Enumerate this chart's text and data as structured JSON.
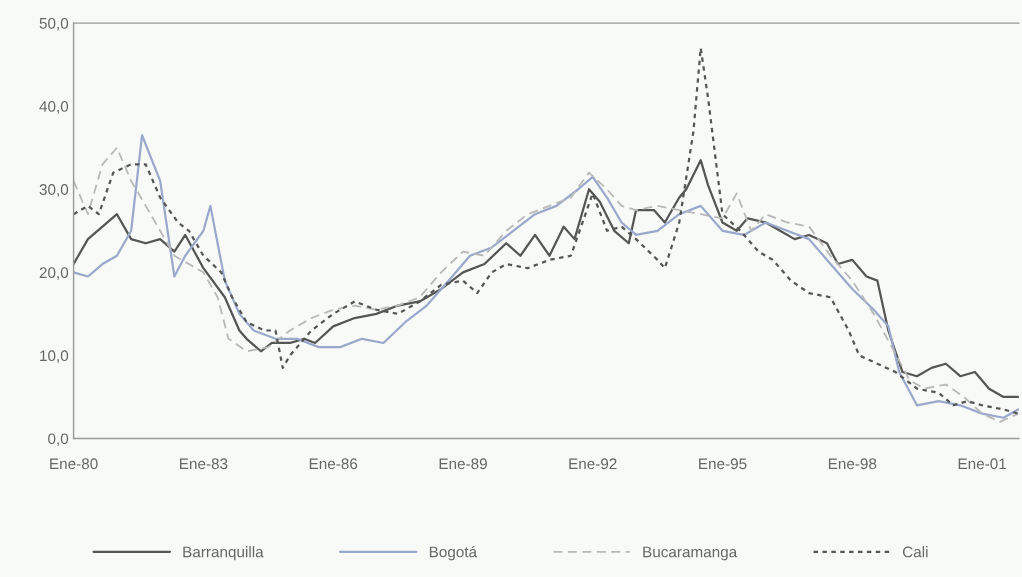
{
  "chart_data": {
    "type": "line",
    "xlim": [
      "1980-01",
      "2001-11-08"
    ],
    "ylim": [
      0,
      50
    ],
    "xticks": [
      {
        "value": "1980-01",
        "label": "Ene-80"
      },
      {
        "value": "1983-01",
        "label": "Ene-83"
      },
      {
        "value": "1986-01",
        "label": "Ene-86"
      },
      {
        "value": "1989-01",
        "label": "Ene-89"
      },
      {
        "value": "1992-01",
        "label": "Ene-92"
      },
      {
        "value": "1995-01",
        "label": "Ene-95"
      },
      {
        "value": "1998-01",
        "label": "Ene-98"
      },
      {
        "value": "2001-01",
        "label": "Ene-01"
      }
    ],
    "yticks": [
      {
        "value": 0,
        "label": "0,0"
      },
      {
        "value": 10,
        "label": "10,0"
      },
      {
        "value": 20,
        "label": "20,0"
      },
      {
        "value": 30,
        "label": "30,0"
      },
      {
        "value": 40,
        "label": "40,0"
      },
      {
        "value": 50,
        "label": "50,0"
      }
    ],
    "grid": false,
    "legend": "bottom",
    "series": [
      {
        "name": "Barranquilla",
        "color": "#555555",
        "line_style": "solid",
        "x": [
          "1980-01",
          "1980-05",
          "1980-09",
          "1981-01",
          "1981-05",
          "1981-09",
          "1982-01",
          "1982-05",
          "1982-08",
          "1983-01",
          "1983-07",
          "1983-11",
          "1984-01",
          "1984-05",
          "1984-08",
          "1985-01",
          "1985-05",
          "1985-08",
          "1986-01",
          "1986-07",
          "1987-01",
          "1987-07",
          "1988-01",
          "1988-07",
          "1989-01",
          "1989-07",
          "1990-01",
          "1990-05",
          "1990-09",
          "1991-01",
          "1991-05",
          "1991-08",
          "1991-12",
          "1992-03",
          "1992-07",
          "1992-11",
          "1993-01",
          "1993-06",
          "1993-09",
          "1994-01",
          "1994-03",
          "1994-07",
          "1994-09",
          "1995-01",
          "1995-05",
          "1995-08",
          "1996-01",
          "1996-05",
          "1996-09",
          "1997-01",
          "1997-06",
          "1997-09",
          "1998-01",
          "1998-05",
          "1998-08",
          "1998-11",
          "1999-03",
          "1999-07",
          "1999-11",
          "2000-03",
          "2000-07",
          "2000-11",
          "2001-03",
          "2001-07",
          "2001-11"
        ],
        "values": [
          21,
          24,
          25.5,
          27,
          24,
          23.5,
          24,
          22.5,
          24.5,
          20.5,
          17,
          13,
          12,
          10.5,
          11.5,
          11.5,
          12,
          11.5,
          13.5,
          14.5,
          15,
          16,
          16.5,
          18,
          20,
          21,
          23.5,
          22,
          24.5,
          22,
          25.5,
          24,
          30,
          28.5,
          25,
          23.5,
          27.5,
          27.5,
          26,
          29,
          30,
          33.5,
          30.5,
          26,
          25,
          26.5,
          26,
          25,
          24,
          24.5,
          23.5,
          21,
          21.5,
          19.5,
          19,
          13,
          8,
          7.5,
          8.5,
          9,
          7.5,
          8,
          6,
          5,
          5
        ]
      },
      {
        "name": "Bogotá",
        "color": "#9aa8cc",
        "line_style": "solid",
        "x": [
          "1980-01",
          "1980-05",
          "1980-09",
          "1981-01",
          "1981-05",
          "1981-08",
          "1982-01",
          "1982-05",
          "1982-08",
          "1983-01",
          "1983-03",
          "1983-07",
          "1983-11",
          "1984-03",
          "1984-09",
          "1985-03",
          "1985-09",
          "1986-03",
          "1986-09",
          "1987-03",
          "1987-09",
          "1988-03",
          "1988-09",
          "1989-03",
          "1989-09",
          "1990-03",
          "1990-09",
          "1991-03",
          "1991-09",
          "1992-01",
          "1992-05",
          "1992-09",
          "1993-01",
          "1993-07",
          "1994-01",
          "1994-07",
          "1995-01",
          "1995-07",
          "1996-01",
          "1996-07",
          "1997-01",
          "1997-07",
          "1998-01",
          "1998-07",
          "1998-11",
          "1999-02",
          "1999-07",
          "2000-01",
          "2000-07",
          "2001-01",
          "2001-07",
          "2001-11"
        ],
        "values": [
          20,
          19.5,
          21,
          22,
          25,
          36.5,
          31,
          19.5,
          22,
          25,
          28,
          19,
          15,
          13,
          12,
          12,
          11,
          11,
          12,
          11.5,
          14,
          16,
          19,
          22,
          23,
          25,
          27,
          28,
          30,
          31.5,
          29,
          26,
          24.5,
          25,
          27,
          28,
          25,
          24.5,
          26,
          25,
          24,
          21,
          18,
          15.5,
          13.5,
          8,
          4,
          4.5,
          4,
          3,
          2.5,
          3.5
        ]
      },
      {
        "name": "Bucaramanga",
        "color": "#b8b8b8",
        "line_style": "dashed",
        "x": [
          "1980-01",
          "1980-05",
          "1980-09",
          "1981-01",
          "1981-05",
          "1981-09",
          "1982-01",
          "1982-05",
          "1982-09",
          "1983-01",
          "1983-05",
          "1983-08",
          "1984-01",
          "1984-07",
          "1985-01",
          "1985-07",
          "1986-01",
          "1986-07",
          "1987-01",
          "1987-07",
          "1988-01",
          "1988-07",
          "1989-01",
          "1989-07",
          "1990-01",
          "1990-07",
          "1991-01",
          "1991-07",
          "1991-12",
          "1992-05",
          "1992-09",
          "1993-01",
          "1993-07",
          "1994-01",
          "1994-07",
          "1995-01",
          "1995-05",
          "1995-09",
          "1996-01",
          "1996-07",
          "1997-01",
          "1997-07",
          "1998-01",
          "1998-07",
          "1998-12",
          "1999-05",
          "1999-09",
          "2000-03",
          "2000-08",
          "2001-01",
          "2001-06",
          "2001-11"
        ],
        "values": [
          31,
          27,
          33,
          35,
          31,
          28,
          25,
          22,
          21,
          20,
          17,
          12,
          10.5,
          11,
          13,
          14.5,
          15.5,
          16,
          15.5,
          16,
          17,
          20,
          22.5,
          22,
          25,
          27,
          28,
          29,
          32,
          30,
          28,
          27.5,
          28,
          27.5,
          27,
          26.5,
          29.5,
          25,
          27,
          26,
          25.5,
          22,
          19,
          15,
          11,
          7,
          6,
          6.5,
          5,
          3,
          2,
          3
        ]
      },
      {
        "name": "Cali",
        "color": "#555555",
        "line_style": "dotted",
        "x": [
          "1980-01",
          "1980-05",
          "1980-08",
          "1980-12",
          "1981-05",
          "1981-09",
          "1982-01",
          "1982-06",
          "1982-09",
          "1983-01",
          "1983-06",
          "1983-09",
          "1984-01",
          "1984-06",
          "1984-09",
          "1984-11",
          "1985-01",
          "1985-07",
          "1986-01",
          "1986-07",
          "1987-01",
          "1987-07",
          "1988-01",
          "1988-07",
          "1989-01",
          "1989-05",
          "1989-09",
          "1990-01",
          "1990-07",
          "1991-01",
          "1991-07",
          "1992-01",
          "1992-05",
          "1992-09",
          "1993-01",
          "1993-07",
          "1993-09",
          "1994-01",
          "1994-05",
          "1994-07",
          "1994-09",
          "1995-01",
          "1995-06",
          "1995-11",
          "1996-03",
          "1996-08",
          "1997-01",
          "1997-07",
          "1997-12",
          "1998-03",
          "1998-08",
          "1999-01",
          "1999-07",
          "2000-01",
          "2000-05",
          "2000-09",
          "2001-01",
          "2001-07",
          "2001-11"
        ],
        "values": [
          27,
          28,
          27,
          32,
          33,
          33,
          29,
          26,
          25,
          22,
          20,
          17,
          14,
          13,
          13,
          8.5,
          10,
          13,
          15,
          16.5,
          15.5,
          15,
          16.5,
          18.5,
          19,
          17.5,
          20,
          21,
          20.5,
          21.5,
          22,
          29.5,
          25,
          25.5,
          24,
          21.5,
          20.5,
          26,
          37,
          47,
          41,
          27,
          25,
          22.5,
          21.5,
          19,
          17.5,
          17,
          13,
          10,
          9,
          8,
          6,
          5.5,
          4,
          4.5,
          4,
          3.5,
          3
        ]
      }
    ]
  }
}
